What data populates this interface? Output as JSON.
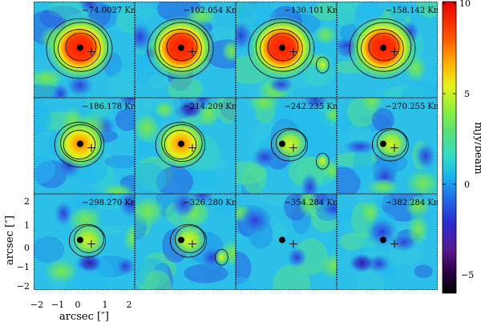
{
  "panels": [
    {
      "velocity": "−74.0027 Km/s",
      "peak": 1.0,
      "contours": 4,
      "emission": "strong"
    },
    {
      "velocity": "−102.054 Km/s",
      "peak": 1.0,
      "contours": 4,
      "emission": "strong"
    },
    {
      "velocity": "−130.101 Km/s",
      "peak": 1.0,
      "contours": 4,
      "emission": "strong"
    },
    {
      "velocity": "−158.142 Km/s",
      "peak": 1.0,
      "contours": 4,
      "emission": "strong"
    },
    {
      "velocity": "−186.178 Km/s",
      "peak": 0.7,
      "contours": 3,
      "emission": "medium"
    },
    {
      "velocity": "−214.209 Km/s",
      "peak": 0.8,
      "contours": 3,
      "emission": "medium"
    },
    {
      "velocity": "−242.235 Km/s",
      "peak": 0.45,
      "contours": 2,
      "emission": "weak"
    },
    {
      "velocity": "−270.255 Km/s",
      "peak": 0.45,
      "contours": 2,
      "emission": "weak"
    },
    {
      "velocity": "−298.270 Km/s",
      "peak": 0.38,
      "contours": 2,
      "emission": "weak"
    },
    {
      "velocity": "−326.280 Km/s",
      "peak": 0.35,
      "contours": 2,
      "emission": "weak"
    },
    {
      "velocity": "−354.284 Km/s",
      "peak": 0.0,
      "contours": 0,
      "emission": "none"
    },
    {
      "velocity": "−382.284 Km/s",
      "peak": 0.0,
      "contours": 0,
      "emission": "none"
    }
  ],
  "axes": {
    "xlabel": "arcsec [″]",
    "ylabel": "arcsec [″]",
    "xticks": [
      "−2",
      "−1",
      "0",
      "1",
      "2"
    ],
    "yticks": [
      "2",
      "1",
      "0",
      "−1",
      "−2"
    ]
  },
  "colorbar": {
    "label": "mJy/beam",
    "ticks": [
      "10",
      "5",
      "0",
      "−5"
    ],
    "range": [
      -6.5,
      10.5
    ]
  },
  "colors": {
    "background": "#ffffff",
    "marker": "#000000",
    "contour": "#000000"
  }
}
